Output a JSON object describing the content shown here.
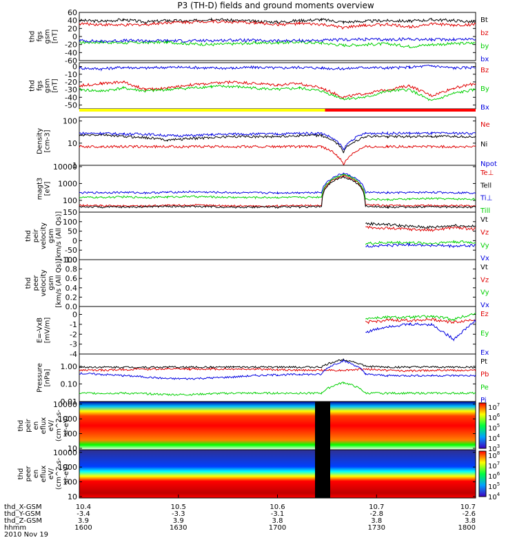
{
  "title": "P3 (TH-D) fields and ground moments overview",
  "colors": {
    "black": "#000000",
    "red": "#e00000",
    "green": "#00d000",
    "blue": "#0000e0",
    "yellow": "#ffff00",
    "barred": "#ff0000"
  },
  "x_axis": {
    "rows": [
      {
        "label": "thd_X-GSM",
        "values": [
          "10.4",
          "10.5",
          "10.6",
          "10.7",
          "10.7"
        ]
      },
      {
        "label": "thd_Y-GSM",
        "values": [
          "-3.4",
          "-3.3",
          "-3.1",
          "-2.8",
          "-2.6"
        ]
      },
      {
        "label": "thd_Z-GSM",
        "values": [
          "3.9",
          "3.9",
          "3.8",
          "3.8",
          "3.8"
        ]
      },
      {
        "label": "hhmm",
        "values": [
          "1600",
          "1630",
          "1700",
          "1730",
          "1800"
        ]
      }
    ],
    "date": "2010 Nov 19"
  },
  "chart_data": [
    {
      "type": "line",
      "ylabel": [
        "thd",
        "fgs",
        "gsm",
        "[nT]"
      ],
      "ylim": [
        -60,
        60
      ],
      "yticks": [
        "60",
        "40",
        "20",
        "0",
        "-20",
        "-40",
        "-60"
      ],
      "yticks_values": [
        60,
        40,
        20,
        0,
        -20,
        -40,
        -60
      ],
      "series": [
        {
          "name": "Bt",
          "color": "black",
          "values": [
            40,
            38,
            42,
            36,
            40,
            38,
            44,
            40,
            38,
            36,
            40,
            42,
            36,
            38,
            40,
            38,
            42,
            40,
            36
          ]
        },
        {
          "name": "bz",
          "color": "red",
          "values": [
            32,
            30,
            28,
            30,
            35,
            36,
            38,
            36,
            34,
            30,
            32,
            30,
            22,
            28,
            30,
            24,
            32,
            28,
            30
          ]
        },
        {
          "name": "by",
          "color": "green",
          "values": [
            -15,
            -14,
            -16,
            -15,
            -14,
            -18,
            -20,
            -18,
            -16,
            -15,
            -14,
            -16,
            -22,
            -20,
            -18,
            -25,
            -20,
            -18,
            -16
          ]
        },
        {
          "name": "bx",
          "color": "blue",
          "values": [
            -10,
            -12,
            -10,
            -11,
            -10,
            -11,
            -10,
            -9,
            -10,
            -11,
            -10,
            -10,
            -8,
            -7,
            -8,
            -6,
            -8,
            -7,
            -6
          ]
        }
      ]
    },
    {
      "type": "line",
      "ylabel": [
        "thd",
        "fgs",
        "gsm",
        "[nT]"
      ],
      "ylim": [
        -55,
        5
      ],
      "yticks": [
        "10",
        "0",
        "-10",
        "-20",
        "-30",
        "-40",
        "-50"
      ],
      "yticks_values": [
        10,
        0,
        -10,
        -20,
        -30,
        -40,
        -50
      ],
      "series": [
        {
          "name": "Bz",
          "color": "red",
          "values": [
            -25,
            -22,
            -20,
            -30,
            -28,
            -24,
            -22,
            -20,
            -22,
            -24,
            -22,
            -28,
            -40,
            -35,
            -30,
            -25,
            -38,
            -28,
            -22
          ]
        },
        {
          "name": "By",
          "color": "green",
          "values": [
            -30,
            -32,
            -28,
            -32,
            -30,
            -28,
            -26,
            -26,
            -28,
            -30,
            -28,
            -32,
            -42,
            -40,
            -32,
            -30,
            -45,
            -35,
            -30
          ]
        },
        {
          "name": "Bx",
          "color": "blue",
          "values": [
            -2,
            -3,
            -1,
            -2,
            -1,
            -1,
            -2,
            -2,
            -1,
            -2,
            -1,
            -2,
            -3,
            -1,
            -2,
            -1,
            1,
            -2,
            -1
          ]
        }
      ]
    },
    {
      "type": "bar",
      "segments": [
        {
          "color": "yellow",
          "from": 0,
          "to": 0.62
        },
        {
          "color": "barred",
          "from": 0.62,
          "to": 1
        }
      ]
    },
    {
      "type": "line",
      "log": true,
      "ylabel": [
        "Density",
        "[cm-3]"
      ],
      "ylim": [
        1,
        150
      ],
      "yticks": [
        "100",
        "10",
        "1"
      ],
      "yticks_values": [
        100,
        10,
        1
      ],
      "series": [
        {
          "name": "Ne",
          "color": "red",
          "values": [
            7,
            7,
            7,
            7,
            7,
            7,
            7,
            7,
            7,
            7,
            7,
            7,
            1,
            7,
            7,
            7,
            7,
            7,
            7
          ]
        },
        {
          "name": "Ni",
          "color": "black",
          "values": [
            22,
            24,
            20,
            18,
            14,
            16,
            18,
            20,
            20,
            20,
            22,
            22,
            4,
            20,
            20,
            20,
            20,
            20,
            20
          ]
        },
        {
          "name": "Npot",
          "color": "blue",
          "values": [
            28,
            28,
            26,
            26,
            22,
            22,
            24,
            26,
            26,
            26,
            28,
            28,
            5,
            28,
            28,
            28,
            28,
            28,
            28
          ]
        }
      ]
    },
    {
      "type": "line",
      "log": true,
      "ylabel": [
        "magt3",
        "[eV]"
      ],
      "ylim": [
        20,
        12000
      ],
      "yticks": [
        "10000",
        "1000",
        "100"
      ],
      "yticks_values": [
        10000,
        1000,
        100
      ],
      "series": [
        {
          "name": "Te⊥",
          "color": "red",
          "values": [
            50,
            48,
            46,
            48,
            50,
            52,
            50,
            48,
            46,
            46,
            48,
            50,
            3000,
            55,
            50,
            48,
            50,
            48,
            48
          ]
        },
        {
          "name": "Tell",
          "color": "black",
          "values": [
            42,
            40,
            40,
            42,
            44,
            44,
            42,
            40,
            40,
            40,
            42,
            42,
            2500,
            45,
            40,
            40,
            42,
            40,
            40
          ]
        },
        {
          "name": "Ti⊥",
          "color": "blue",
          "values": [
            280,
            290,
            300,
            280,
            300,
            320,
            300,
            290,
            280,
            280,
            290,
            300,
            4000,
            300,
            280,
            290,
            300,
            290,
            280
          ]
        },
        {
          "name": "Till",
          "color": "green",
          "values": [
            150,
            150,
            160,
            150,
            160,
            170,
            160,
            150,
            150,
            150,
            150,
            160,
            3500,
            120,
            110,
            120,
            130,
            120,
            120
          ]
        }
      ]
    },
    {
      "type": "line",
      "ylabel": [
        "thd",
        "peir",
        "velocity",
        "gsm",
        "[km/s (All Qs)]"
      ],
      "ylim": [
        -100,
        150
      ],
      "yticks": [
        "150",
        "100",
        "50",
        "0",
        "-50",
        "-100"
      ],
      "yticks_values": [
        150,
        100,
        50,
        0,
        -50,
        -100
      ],
      "series": [
        {
          "name": "Vt",
          "color": "black",
          "values": [
            null,
            null,
            null,
            null,
            null,
            null,
            null,
            null,
            null,
            null,
            null,
            null,
            null,
            90,
            85,
            75,
            70,
            80,
            75
          ]
        },
        {
          "name": "Vz",
          "color": "red",
          "values": [
            null,
            null,
            null,
            null,
            null,
            null,
            null,
            null,
            null,
            null,
            null,
            null,
            null,
            70,
            65,
            60,
            55,
            70,
            60
          ]
        },
        {
          "name": "Vy",
          "color": "green",
          "values": [
            null,
            null,
            null,
            null,
            null,
            null,
            null,
            null,
            null,
            null,
            null,
            null,
            null,
            -15,
            -10,
            -10,
            -15,
            -5,
            -10
          ]
        },
        {
          "name": "Vx",
          "color": "blue",
          "values": [
            null,
            null,
            null,
            null,
            null,
            null,
            null,
            null,
            null,
            null,
            null,
            null,
            null,
            -30,
            -25,
            -20,
            -25,
            -30,
            -25
          ]
        }
      ]
    },
    {
      "type": "line",
      "ylabel": [
        "thd",
        "peer",
        "velocity",
        "gsm",
        "[km/s (All Qs)]"
      ],
      "ylim": [
        0,
        1
      ],
      "yticks": [
        "1.0",
        "0.8",
        "0.6",
        "0.4",
        "0.2",
        "0.0"
      ],
      "yticks_values": [
        1.0,
        0.8,
        0.6,
        0.4,
        0.2,
        0.0
      ],
      "series": [
        {
          "name": "Vt",
          "color": "black",
          "values": []
        },
        {
          "name": "Vz",
          "color": "red",
          "values": []
        },
        {
          "name": "Vy",
          "color": "green",
          "values": []
        },
        {
          "name": "Vx",
          "color": "blue",
          "values": []
        }
      ]
    },
    {
      "type": "line",
      "ylabel": [
        "E=-VxB",
        "[mV/m]"
      ],
      "ylim": [
        -4,
        0.8
      ],
      "yticks": [
        "0",
        "-1",
        "-2",
        "-3",
        "-4"
      ],
      "yticks_values": [
        0,
        -1,
        -2,
        -3,
        -4
      ],
      "series": [
        {
          "name": "Ez",
          "color": "red",
          "values": [
            null,
            null,
            null,
            null,
            null,
            null,
            null,
            null,
            null,
            null,
            null,
            null,
            null,
            -0.8,
            -0.6,
            -0.6,
            -0.5,
            -0.8,
            -0.5
          ]
        },
        {
          "name": "Ey",
          "color": "green",
          "values": [
            null,
            null,
            null,
            null,
            null,
            null,
            null,
            null,
            null,
            null,
            null,
            null,
            null,
            -0.4,
            -0.3,
            -0.3,
            -0.2,
            -0.5,
            0.1
          ]
        },
        {
          "name": "Ex",
          "color": "blue",
          "values": [
            null,
            null,
            null,
            null,
            null,
            null,
            null,
            null,
            null,
            null,
            null,
            null,
            null,
            -1.8,
            -1.2,
            -1.0,
            -1.0,
            -2.5,
            -0.6
          ]
        }
      ]
    },
    {
      "type": "line",
      "log": true,
      "ylabel": [
        "Pressure",
        "[nPa]"
      ],
      "ylim": [
        0.01,
        5
      ],
      "yticks": [
        "1.00",
        "0.10",
        "0.01"
      ],
      "yticks_values": [
        1,
        0.1,
        0.01
      ],
      "series": [
        {
          "name": "Pt",
          "color": "black",
          "values": [
            0.9,
            0.9,
            0.9,
            0.9,
            0.9,
            0.9,
            0.9,
            0.9,
            0.9,
            0.9,
            0.9,
            0.9,
            2.5,
            1.0,
            0.9,
            0.9,
            0.9,
            0.9,
            0.9
          ]
        },
        {
          "name": "Pb",
          "color": "red",
          "values": [
            0.6,
            0.6,
            0.65,
            0.7,
            0.7,
            0.7,
            0.7,
            0.7,
            0.7,
            0.65,
            0.6,
            0.6,
            0.6,
            0.7,
            0.6,
            0.55,
            0.6,
            0.6,
            0.6
          ]
        },
        {
          "name": "Pe",
          "color": "green",
          "values": [
            0.03,
            0.03,
            0.03,
            0.028,
            0.025,
            0.025,
            0.028,
            0.03,
            0.03,
            0.03,
            0.03,
            0.03,
            0.12,
            0.03,
            0.03,
            0.03,
            0.03,
            0.03,
            0.03
          ]
        },
        {
          "name": "Pi",
          "color": "blue",
          "values": [
            0.4,
            0.35,
            0.3,
            0.25,
            0.2,
            0.2,
            0.22,
            0.25,
            0.3,
            0.33,
            0.35,
            0.35,
            2.0,
            0.35,
            0.3,
            0.3,
            0.3,
            0.3,
            0.3
          ]
        }
      ]
    },
    {
      "type": "heatmap",
      "ylabel": [
        "thd",
        "peir",
        "en",
        "eflux",
        "eV/",
        "(cm^2-s-",
        "sr-eV)"
      ],
      "yticks": [
        "10000",
        "1000",
        "100",
        "10"
      ],
      "yticks_values": [
        10000,
        1000,
        100,
        10
      ],
      "colorbar_ticks": [
        "10^7",
        "10^6",
        "10^5",
        "10^4",
        "10^3"
      ]
    },
    {
      "type": "heatmap",
      "ylabel": [
        "thd",
        "peer",
        "en",
        "eflux",
        "eV/",
        "(cm^2-s-",
        "sr-eV)"
      ],
      "yticks": [
        "10000",
        "1000",
        "100",
        "10"
      ],
      "yticks_values": [
        10000,
        1000,
        100,
        10
      ],
      "colorbar_ticks": [
        "10^8",
        "10^7",
        "10^6",
        "10^5",
        "10^4"
      ]
    }
  ]
}
